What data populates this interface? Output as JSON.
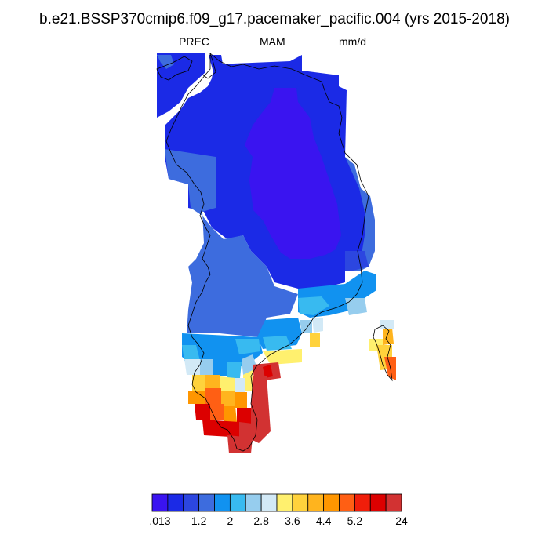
{
  "title": "b.e21.BSSP370cmip6.f09_g17.pacemaker_pacific.004 (yrs 2015-2018)",
  "subtitle": {
    "left": "PREC",
    "center": "MAM",
    "right": "mm/d"
  },
  "colorbar": {
    "colors": [
      "#3a14f0",
      "#1b2ae6",
      "#2c46e0",
      "#3d6cde",
      "#1192f0",
      "#38baf0",
      "#96cdee",
      "#d2e9f6",
      "#fff06e",
      "#ffd23c",
      "#ffb41e",
      "#ff9600",
      "#ff5f14",
      "#f01e0a",
      "#dc0000",
      "#d23232"
    ],
    "labels": [
      ".013",
      "1.2",
      "2",
      "2.8",
      "3.6",
      "4.4",
      "5.2",
      "24"
    ]
  }
}
